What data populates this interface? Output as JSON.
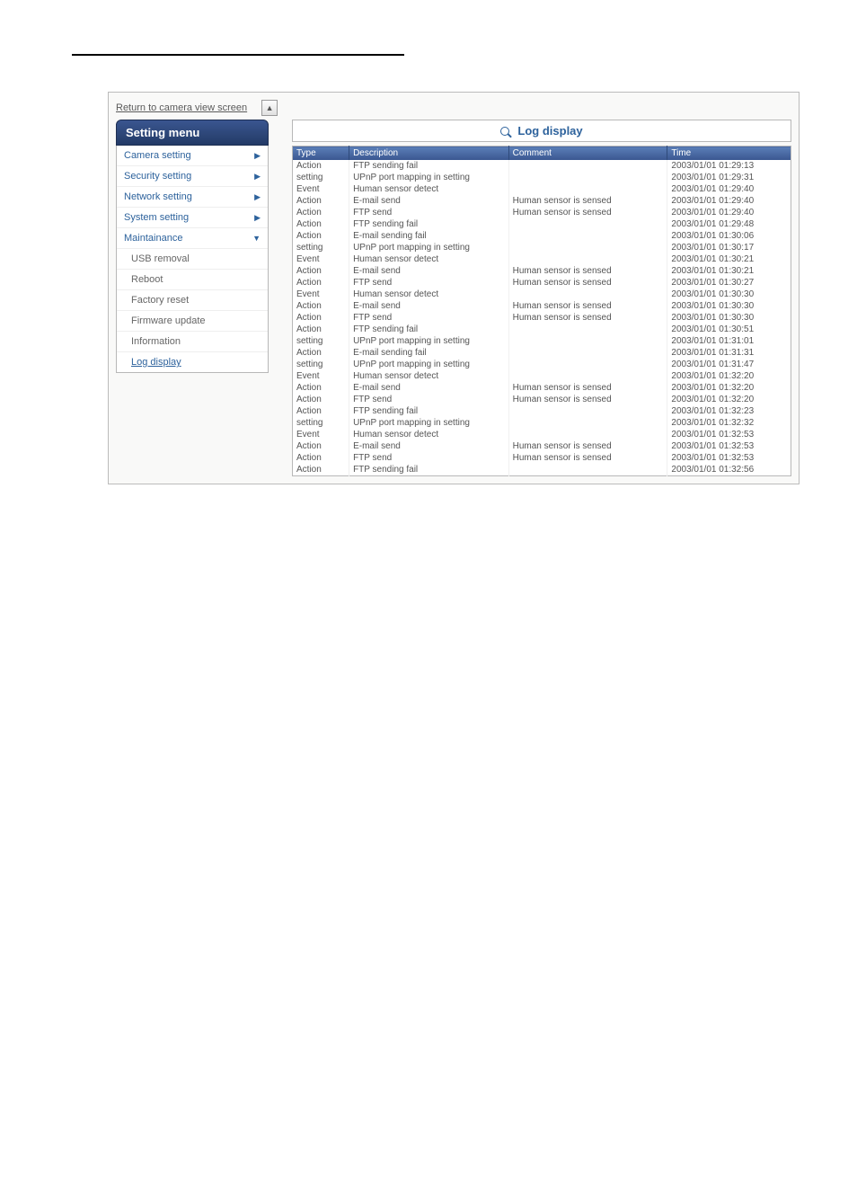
{
  "top_link": "Return to camera view screen",
  "sidebar": {
    "title": "Setting menu",
    "items": [
      {
        "label": "Camera setting",
        "arrow": "▶"
      },
      {
        "label": "Security setting",
        "arrow": "▶"
      },
      {
        "label": "Network setting",
        "arrow": "▶"
      },
      {
        "label": "System setting",
        "arrow": "▶"
      },
      {
        "label": "Maintainance",
        "arrow": "▼"
      }
    ],
    "subitems": [
      {
        "label": "USB removal"
      },
      {
        "label": "Reboot"
      },
      {
        "label": "Factory reset"
      },
      {
        "label": "Firmware update"
      },
      {
        "label": "Information"
      },
      {
        "label": "Log display",
        "active": true
      }
    ]
  },
  "panel": {
    "title": "Log display",
    "columns": {
      "type": "Type",
      "desc": "Description",
      "comment": "Comment",
      "time": "Time"
    },
    "rows": [
      {
        "type": "Action",
        "desc": "FTP sending fail",
        "comment": "",
        "time": "2003/01/01 01:29:13"
      },
      {
        "type": "setting",
        "desc": "UPnP port mapping in setting",
        "comment": "",
        "time": "2003/01/01 01:29:31"
      },
      {
        "type": "Event",
        "desc": "Human sensor detect",
        "comment": "",
        "time": "2003/01/01 01:29:40"
      },
      {
        "type": "Action",
        "desc": "E-mail send",
        "comment": "Human sensor is sensed",
        "time": "2003/01/01 01:29:40"
      },
      {
        "type": "Action",
        "desc": "FTP send",
        "comment": "Human sensor is sensed",
        "time": "2003/01/01 01:29:40"
      },
      {
        "type": "Action",
        "desc": "FTP sending fail",
        "comment": "",
        "time": "2003/01/01 01:29:48"
      },
      {
        "type": "Action",
        "desc": "E-mail sending fail",
        "comment": "",
        "time": "2003/01/01 01:30:06"
      },
      {
        "type": "setting",
        "desc": "UPnP port mapping in setting",
        "comment": "",
        "time": "2003/01/01 01:30:17"
      },
      {
        "type": "Event",
        "desc": "Human sensor detect",
        "comment": "",
        "time": "2003/01/01 01:30:21"
      },
      {
        "type": "Action",
        "desc": "E-mail send",
        "comment": "Human sensor is sensed",
        "time": "2003/01/01 01:30:21"
      },
      {
        "type": "Action",
        "desc": "FTP send",
        "comment": "Human sensor is sensed",
        "time": "2003/01/01 01:30:27"
      },
      {
        "type": "Event",
        "desc": "Human sensor detect",
        "comment": "",
        "time": "2003/01/01 01:30:30"
      },
      {
        "type": "Action",
        "desc": "E-mail send",
        "comment": "Human sensor is sensed",
        "time": "2003/01/01 01:30:30"
      },
      {
        "type": "Action",
        "desc": "FTP send",
        "comment": "Human sensor is sensed",
        "time": "2003/01/01 01:30:30"
      },
      {
        "type": "Action",
        "desc": "FTP sending fail",
        "comment": "",
        "time": "2003/01/01 01:30:51"
      },
      {
        "type": "setting",
        "desc": "UPnP port mapping in setting",
        "comment": "",
        "time": "2003/01/01 01:31:01"
      },
      {
        "type": "Action",
        "desc": "E-mail sending fail",
        "comment": "",
        "time": "2003/01/01 01:31:31"
      },
      {
        "type": "setting",
        "desc": "UPnP port mapping in setting",
        "comment": "",
        "time": "2003/01/01 01:31:47"
      },
      {
        "type": "Event",
        "desc": "Human sensor detect",
        "comment": "",
        "time": "2003/01/01 01:32:20"
      },
      {
        "type": "Action",
        "desc": "E-mail send",
        "comment": "Human sensor is sensed",
        "time": "2003/01/01 01:32:20"
      },
      {
        "type": "Action",
        "desc": "FTP send",
        "comment": "Human sensor is sensed",
        "time": "2003/01/01 01:32:20"
      },
      {
        "type": "Action",
        "desc": "FTP sending fail",
        "comment": "",
        "time": "2003/01/01 01:32:23"
      },
      {
        "type": "setting",
        "desc": "UPnP port mapping in setting",
        "comment": "",
        "time": "2003/01/01 01:32:32"
      },
      {
        "type": "Event",
        "desc": "Human sensor detect",
        "comment": "",
        "time": "2003/01/01 01:32:53"
      },
      {
        "type": "Action",
        "desc": "E-mail send",
        "comment": "Human sensor is sensed",
        "time": "2003/01/01 01:32:53"
      },
      {
        "type": "Action",
        "desc": "FTP send",
        "comment": "Human sensor is sensed",
        "time": "2003/01/01 01:32:53"
      },
      {
        "type": "Action",
        "desc": "FTP sending fail",
        "comment": "",
        "time": "2003/01/01 01:32:56"
      }
    ]
  }
}
